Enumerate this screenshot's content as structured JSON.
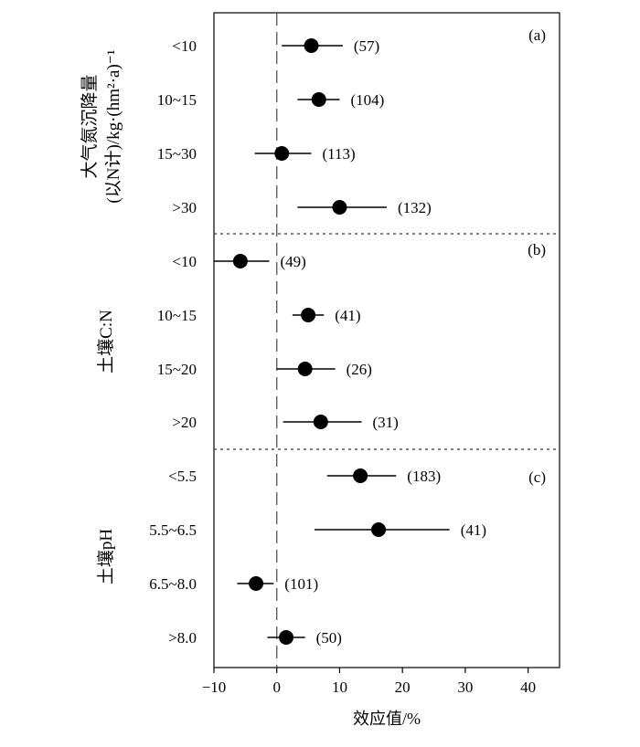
{
  "chart_data": {
    "type": "scatter",
    "subtype": "forest-plot",
    "xlabel": "效应值/%",
    "xlim": [
      -10,
      45
    ],
    "xticks": [
      -10,
      0,
      10,
      20,
      30,
      40
    ],
    "xtick_labels": [
      "−10",
      "0",
      "10",
      "20",
      "30",
      "40"
    ],
    "reference_line": 0,
    "panels": [
      {
        "panel_label": "(a)",
        "group_title_line1": "大气氮沉降量",
        "group_title_line2": "(以N计)/kg·(hm²·a)⁻¹",
        "rows": [
          {
            "category": "<10",
            "mean": 5.5,
            "ci_low": 0.8,
            "ci_high": 10.5,
            "n_label": "(57)"
          },
          {
            "category": "10~15",
            "mean": 6.7,
            "ci_low": 3.3,
            "ci_high": 10.0,
            "n_label": "(104)"
          },
          {
            "category": "15~30",
            "mean": 0.8,
            "ci_low": -3.5,
            "ci_high": 5.5,
            "n_label": "(113)"
          },
          {
            "category": ">30",
            "mean": 10.0,
            "ci_low": 3.3,
            "ci_high": 17.5,
            "n_label": "(132)"
          }
        ]
      },
      {
        "panel_label": "(b)",
        "group_title_line1": "土壤C:N",
        "group_title_line2": "",
        "rows": [
          {
            "category": "<10",
            "mean": -5.8,
            "ci_low": -10.0,
            "ci_high": -1.2,
            "n_label": "(49)"
          },
          {
            "category": "10~15",
            "mean": 5.0,
            "ci_low": 2.5,
            "ci_high": 7.5,
            "n_label": "(41)"
          },
          {
            "category": "15~20",
            "mean": 4.5,
            "ci_low": 0.0,
            "ci_high": 9.3,
            "n_label": "(26)"
          },
          {
            "category": ">20",
            "mean": 7.0,
            "ci_low": 1.0,
            "ci_high": 13.5,
            "n_label": "(31)"
          }
        ]
      },
      {
        "panel_label": "(c)",
        "group_title_line1": "土壤pH",
        "group_title_line2": "",
        "rows": [
          {
            "category": "<5.5",
            "mean": 13.3,
            "ci_low": 8.0,
            "ci_high": 19.0,
            "n_label": "(183)"
          },
          {
            "category": "5.5~6.5",
            "mean": 16.2,
            "ci_low": 6.0,
            "ci_high": 27.5,
            "n_label": "(41)"
          },
          {
            "category": "6.5~8.0",
            "mean": -3.3,
            "ci_low": -6.3,
            "ci_high": -0.5,
            "n_label": "(101)"
          },
          {
            "category": ">8.0",
            "mean": 1.5,
            "ci_low": -1.5,
            "ci_high": 4.5,
            "n_label": "(50)"
          }
        ]
      }
    ]
  }
}
